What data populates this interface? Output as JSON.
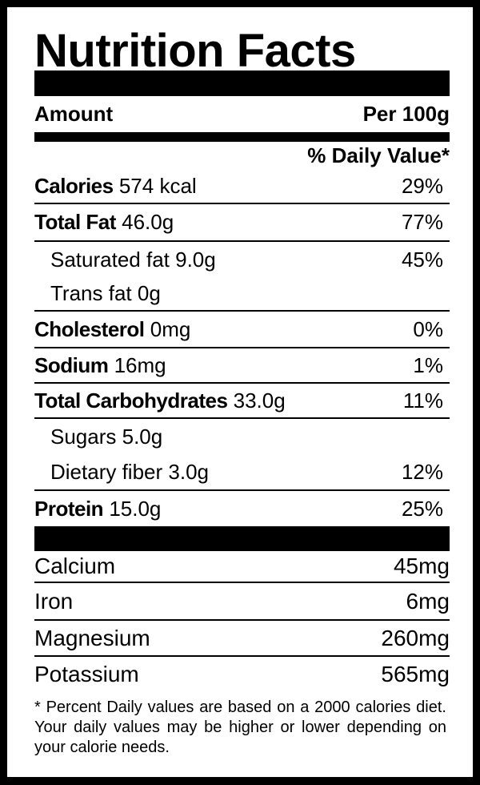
{
  "title": "Nutrition Facts",
  "amount_label": "Amount",
  "serving": "Per 100g",
  "daily_value_header": "% Daily Value*",
  "nutrients": [
    {
      "name": "Calories",
      "amount": "574 kcal",
      "dv": "29%"
    },
    {
      "name": "Total Fat",
      "amount": "46.0g",
      "dv": "77%"
    },
    {
      "name": "Saturated fat",
      "amount": "9.0g",
      "dv": "45%"
    },
    {
      "name": "Trans fat",
      "amount": "0g",
      "dv": ""
    },
    {
      "name": "Cholesterol",
      "amount": "0mg",
      "dv": "0%"
    },
    {
      "name": "Sodium",
      "amount": "16mg",
      "dv": "1%"
    },
    {
      "name": "Total Carbohydrates",
      "amount": "33.0g",
      "dv": "11%"
    },
    {
      "name": "Sugars",
      "amount": "5.0g",
      "dv": ""
    },
    {
      "name": "Dietary fiber",
      "amount": "3.0g",
      "dv": "12%"
    },
    {
      "name": "Protein",
      "amount": "15.0g",
      "dv": "25%"
    }
  ],
  "minerals": [
    {
      "name": "Calcium",
      "amount": "45mg"
    },
    {
      "name": "Iron",
      "amount": "6mg"
    },
    {
      "name": "Magnesium",
      "amount": "260mg"
    },
    {
      "name": "Potassium",
      "amount": "565mg"
    }
  ],
  "footnote": "* Percent Daily values are based on a 2000 calories diet. Your daily values may be higher or lower depending on your calorie needs."
}
